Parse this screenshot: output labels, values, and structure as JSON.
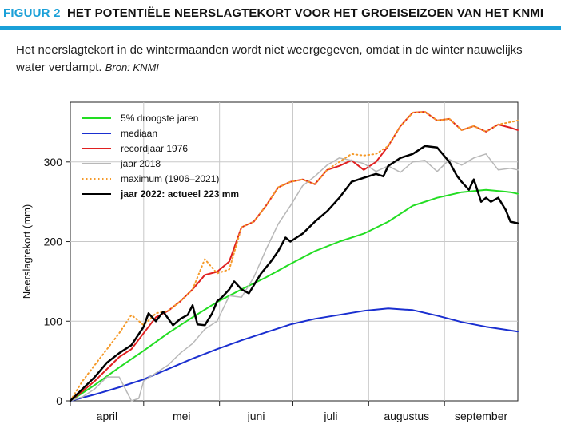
{
  "header": {
    "figure_label": "FIGUUR 2",
    "title": "HET POTENTIËLE NEERSLAGTEKORT VOOR HET GROEISEIZOEN VAN HET KNMI"
  },
  "caption": {
    "text": "Het neerslagtekort in de wintermaanden wordt niet weergegeven, omdat in de winter nauwelijks water verdampt.",
    "source": "Bron: KNMI"
  },
  "colors": {
    "accent": "#1aa0d8",
    "droogste": "#22dd22",
    "mediaan": "#1a2fd0",
    "record": "#e02020",
    "jaar2018": "#b8b8b8",
    "maximum": "#f59a2a",
    "jaar2022": "#000000"
  },
  "chart_data": {
    "type": "line",
    "title": "",
    "xlabel": "",
    "ylabel": "Neerslagtekort (mm)",
    "xlim": [
      0,
      183
    ],
    "ylim": [
      0,
      375
    ],
    "yticks": [
      0,
      100,
      200,
      300
    ],
    "months": [
      {
        "label": "april",
        "start": 0,
        "end": 30
      },
      {
        "label": "mei",
        "start": 30,
        "end": 61
      },
      {
        "label": "juni",
        "start": 61,
        "end": 91
      },
      {
        "label": "juli",
        "start": 91,
        "end": 122
      },
      {
        "label": "augustus",
        "start": 122,
        "end": 153
      },
      {
        "label": "september",
        "start": 153,
        "end": 183
      }
    ],
    "series": [
      {
        "name": "5% droogste jaren",
        "color_key": "droogste",
        "style": "solid",
        "width": 2,
        "x": [
          0,
          10,
          20,
          30,
          40,
          50,
          60,
          70,
          80,
          90,
          100,
          110,
          120,
          130,
          140,
          150,
          160,
          170,
          180,
          183
        ],
        "y": [
          0,
          20,
          42,
          63,
          85,
          105,
          124,
          140,
          155,
          172,
          188,
          200,
          210,
          225,
          245,
          255,
          262,
          265,
          262,
          260
        ]
      },
      {
        "name": "mediaan",
        "color_key": "mediaan",
        "style": "solid",
        "width": 2,
        "x": [
          0,
          10,
          20,
          30,
          40,
          50,
          60,
          70,
          80,
          90,
          100,
          110,
          120,
          130,
          140,
          150,
          160,
          170,
          183
        ],
        "y": [
          0,
          8,
          17,
          27,
          40,
          53,
          65,
          76,
          86,
          96,
          103,
          108,
          113,
          116,
          114,
          107,
          99,
          93,
          87
        ]
      },
      {
        "name": "recordjaar 1976",
        "color_key": "record",
        "style": "solid",
        "width": 2,
        "x": [
          0,
          5,
          10,
          15,
          20,
          25,
          30,
          35,
          40,
          45,
          50,
          55,
          60,
          65,
          70,
          75,
          80,
          85,
          90,
          95,
          100,
          105,
          110,
          115,
          120,
          125,
          130,
          135,
          140,
          145,
          150,
          155,
          160,
          165,
          170,
          175,
          180,
          183
        ],
        "y": [
          0,
          12,
          25,
          40,
          55,
          65,
          85,
          105,
          113,
          125,
          140,
          158,
          162,
          175,
          218,
          225,
          245,
          268,
          275,
          278,
          272,
          290,
          295,
          302,
          290,
          300,
          320,
          345,
          362,
          363,
          352,
          354,
          340,
          345,
          338,
          347,
          343,
          340
        ]
      },
      {
        "name": "jaar 2018",
        "color_key": "jaar2018",
        "style": "solid",
        "width": 1.5,
        "x": [
          0,
          5,
          10,
          15,
          20,
          25,
          28,
          30,
          35,
          40,
          45,
          50,
          55,
          60,
          65,
          70,
          75,
          80,
          85,
          90,
          95,
          100,
          105,
          110,
          115,
          120,
          125,
          130,
          135,
          140,
          145,
          150,
          155,
          160,
          165,
          170,
          175,
          180,
          183
        ],
        "y": [
          0,
          5,
          15,
          30,
          30,
          0,
          3,
          25,
          35,
          45,
          60,
          72,
          90,
          100,
          132,
          130,
          155,
          190,
          222,
          245,
          270,
          282,
          296,
          305,
          302,
          298,
          288,
          295,
          287,
          300,
          302,
          288,
          303,
          296,
          305,
          310,
          290,
          292,
          290
        ]
      },
      {
        "name": "maximum (1906–2021)",
        "color_key": "maximum",
        "style": "dotted",
        "width": 2,
        "x": [
          0,
          5,
          10,
          15,
          20,
          25,
          30,
          35,
          40,
          45,
          50,
          55,
          60,
          65,
          70,
          75,
          80,
          85,
          90,
          95,
          100,
          105,
          110,
          115,
          120,
          125,
          130,
          135,
          140,
          145,
          150,
          155,
          160,
          165,
          170,
          175,
          180,
          183
        ],
        "y": [
          0,
          25,
          45,
          65,
          85,
          108,
          95,
          110,
          113,
          125,
          140,
          178,
          160,
          165,
          218,
          225,
          245,
          268,
          275,
          278,
          272,
          290,
          300,
          310,
          308,
          310,
          320,
          345,
          362,
          363,
          352,
          354,
          340,
          345,
          338,
          347,
          350,
          352
        ]
      },
      {
        "name": "jaar 2022: actueel 223 mm",
        "color_key": "jaar2022",
        "style": "solid",
        "width": 2.5,
        "x": [
          0,
          5,
          10,
          15,
          20,
          25,
          30,
          32,
          35,
          38,
          42,
          45,
          48,
          50,
          52,
          55,
          58,
          60,
          62,
          65,
          67,
          70,
          73,
          75,
          78,
          82,
          85,
          88,
          90,
          95,
          100,
          105,
          110,
          115,
          120,
          125,
          128,
          130,
          135,
          140,
          145,
          150,
          155,
          158,
          160,
          163,
          165,
          168,
          170,
          172,
          175,
          178,
          180,
          183
        ],
        "y": [
          0,
          15,
          30,
          48,
          60,
          70,
          93,
          110,
          100,
          112,
          95,
          103,
          108,
          120,
          96,
          95,
          110,
          125,
          130,
          140,
          150,
          140,
          135,
          145,
          160,
          175,
          188,
          205,
          200,
          210,
          225,
          238,
          255,
          275,
          280,
          285,
          282,
          295,
          305,
          310,
          320,
          318,
          300,
          283,
          275,
          265,
          278,
          250,
          255,
          250,
          255,
          240,
          225,
          223
        ]
      }
    ]
  }
}
